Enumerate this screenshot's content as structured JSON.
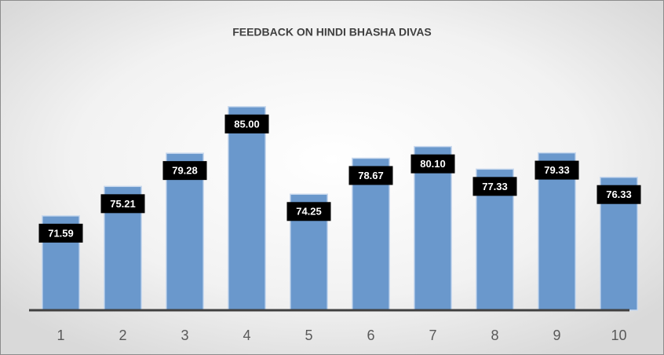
{
  "chart_data": {
    "type": "bar",
    "title": "FEEDBACK ON HINDI BHASHA DIVAS",
    "categories": [
      "1",
      "2",
      "3",
      "4",
      "5",
      "6",
      "7",
      "8",
      "9",
      "10"
    ],
    "values": [
      71.59,
      75.21,
      79.28,
      85.0,
      74.25,
      78.67,
      80.1,
      77.33,
      79.33,
      76.33
    ],
    "value_labels": [
      "71.59",
      "75.21",
      "79.28",
      "85.00",
      "74.25",
      "78.67",
      "80.10",
      "77.33",
      "79.33",
      "76.33"
    ],
    "color": "#6a98cc",
    "ylim": [
      60,
      90
    ]
  }
}
